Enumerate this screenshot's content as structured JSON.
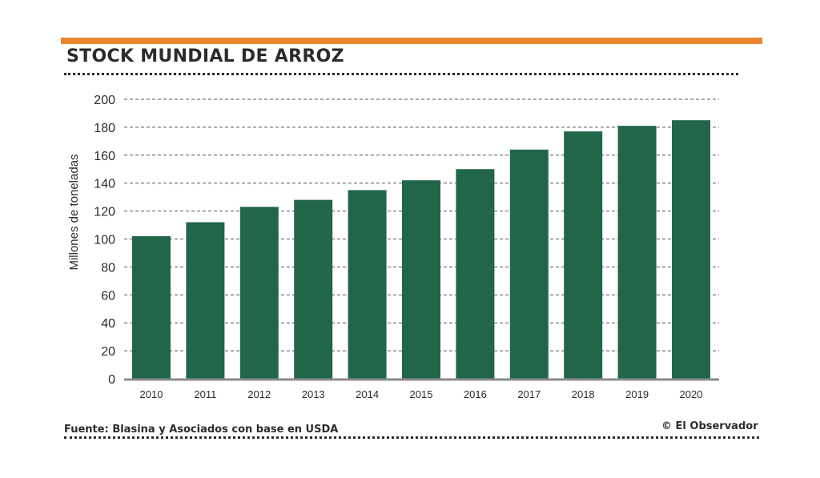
{
  "header": {
    "title": "STOCK MUNDIAL DE ARROZ"
  },
  "colors": {
    "accent": "#e9852f",
    "bar": "#22664a",
    "text": "#2b2b2b",
    "grid": "#555555"
  },
  "footer": {
    "source": "Fuente: Blasina y Asociados con base en USDA",
    "credit": "© El Observador"
  },
  "chart_data": {
    "type": "bar",
    "title": "STOCK MUNDIAL DE ARROZ",
    "xlabel": "",
    "ylabel": "Millones de toneladas",
    "ylim": [
      0,
      200
    ],
    "yticks": [
      0,
      20,
      40,
      60,
      80,
      100,
      120,
      140,
      160,
      180,
      200
    ],
    "grid": true,
    "categories": [
      "2010",
      "2011",
      "2012",
      "2013",
      "2014",
      "2015",
      "2016",
      "2017",
      "2018",
      "2019",
      "2020"
    ],
    "values": [
      102,
      112,
      123,
      128,
      135,
      142,
      150,
      164,
      177,
      181,
      185
    ]
  }
}
